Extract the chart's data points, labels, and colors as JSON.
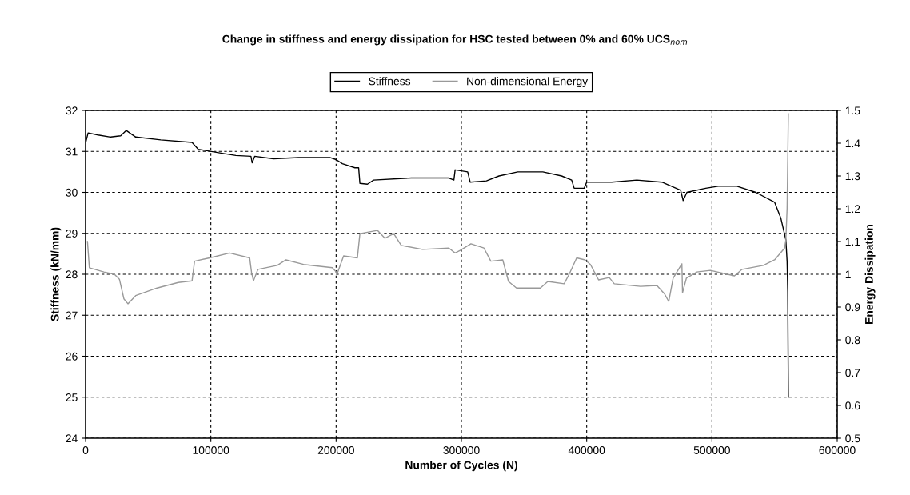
{
  "chart_data": {
    "type": "line",
    "title": "Change in stiffness and energy dissipation for HSC tested between 0% and 60% UCS$_{nom}$",
    "xlabel": "Number of Cycles (N)",
    "ylabel": "Stiffness (kN/mm)",
    "y2label": "Energy Dissipation",
    "xlim": [
      0,
      600000
    ],
    "xticks": [
      0,
      100000,
      200000,
      300000,
      400000,
      500000,
      600000
    ],
    "ylim": [
      24,
      32
    ],
    "yticks": [
      24,
      25,
      26,
      27,
      28,
      29,
      30,
      31,
      32
    ],
    "y2lim": [
      0.5,
      1.5
    ],
    "y2ticks": [
      0.5,
      0.6,
      0.7,
      0.8,
      0.9,
      1,
      1.1,
      1.2,
      1.3,
      1.4,
      1.5
    ],
    "grid": true,
    "legend": "top",
    "line_style": "solid",
    "marker": "none",
    "series": [
      {
        "name": "Stiffness",
        "color": "#000000",
        "x": [
          0,
          2000,
          10000,
          20000,
          28000,
          32500,
          40000,
          60000,
          85000,
          90000,
          110000,
          120000,
          132000,
          133000,
          135000,
          150000,
          170000,
          195000,
          200000,
          205000,
          215000,
          218000,
          219000,
          225000,
          230000,
          260000,
          290000,
          294000,
          295000,
          305000,
          307000,
          320000,
          330000,
          345000,
          365000,
          380000,
          388000,
          390000,
          398000,
          400000,
          420000,
          440000,
          460000,
          475000,
          477000,
          480000,
          495000,
          505000,
          520000,
          535000,
          550000,
          555000,
          559000,
          560000,
          560500,
          561000
        ],
        "values": [
          31.2,
          31.45,
          31.4,
          31.35,
          31.38,
          31.51,
          31.35,
          31.28,
          31.22,
          31.05,
          30.95,
          30.9,
          30.88,
          30.72,
          30.88,
          30.82,
          30.85,
          30.85,
          30.8,
          30.7,
          30.6,
          30.6,
          30.22,
          30.2,
          30.3,
          30.35,
          30.35,
          30.3,
          30.55,
          30.5,
          30.25,
          30.28,
          30.4,
          30.5,
          30.5,
          30.4,
          30.3,
          30.1,
          30.1,
          30.25,
          30.25,
          30.3,
          30.25,
          30.05,
          29.8,
          30.0,
          30.1,
          30.15,
          30.15,
          30.0,
          29.76,
          29.37,
          28.84,
          28.31,
          27.57,
          25.0
        ]
      },
      {
        "name": "Non-dimensional Energy",
        "color": "#999999",
        "axis": "y2",
        "x": [
          1500,
          3000,
          14600,
          23000,
          27000,
          30600,
          33800,
          40000,
          57000,
          74000,
          85000,
          87000,
          99000,
          115000,
          131000,
          132500,
          134000,
          137600,
          153000,
          160000,
          174000,
          197000,
          201000,
          206000,
          217000,
          219000,
          233000,
          239000,
          246000,
          252000,
          269000,
          290000,
          295000,
          299000,
          307600,
          318000,
          323500,
          333000,
          337600,
          344000,
          363000,
          369000,
          382000,
          386000,
          392000,
          398700,
          403000,
          409500,
          418000,
          422000,
          443000,
          456000,
          462000,
          465500,
          469000,
          476000,
          476500,
          479600,
          488000,
          498700,
          518000,
          524000,
          541000,
          550000,
          558000,
          559000,
          560000,
          561000
        ],
        "values": [
          1.1,
          1.02,
          1.007,
          1.0,
          0.985,
          0.925,
          0.91,
          0.935,
          0.958,
          0.975,
          0.98,
          1.04,
          1.05,
          1.065,
          1.05,
          1.005,
          0.98,
          1.015,
          1.027,
          1.044,
          1.03,
          1.02,
          1.003,
          1.056,
          1.05,
          1.124,
          1.134,
          1.11,
          1.124,
          1.088,
          1.076,
          1.08,
          1.065,
          1.073,
          1.093,
          1.08,
          1.04,
          1.044,
          0.978,
          0.958,
          0.958,
          0.978,
          0.971,
          1.0,
          1.05,
          1.044,
          1.03,
          0.983,
          0.99,
          0.971,
          0.963,
          0.966,
          0.941,
          0.917,
          0.988,
          1.032,
          0.944,
          0.988,
          1.007,
          1.012,
          0.995,
          1.015,
          1.027,
          1.044,
          1.08,
          1.105,
          1.202,
          1.49
        ]
      }
    ]
  }
}
